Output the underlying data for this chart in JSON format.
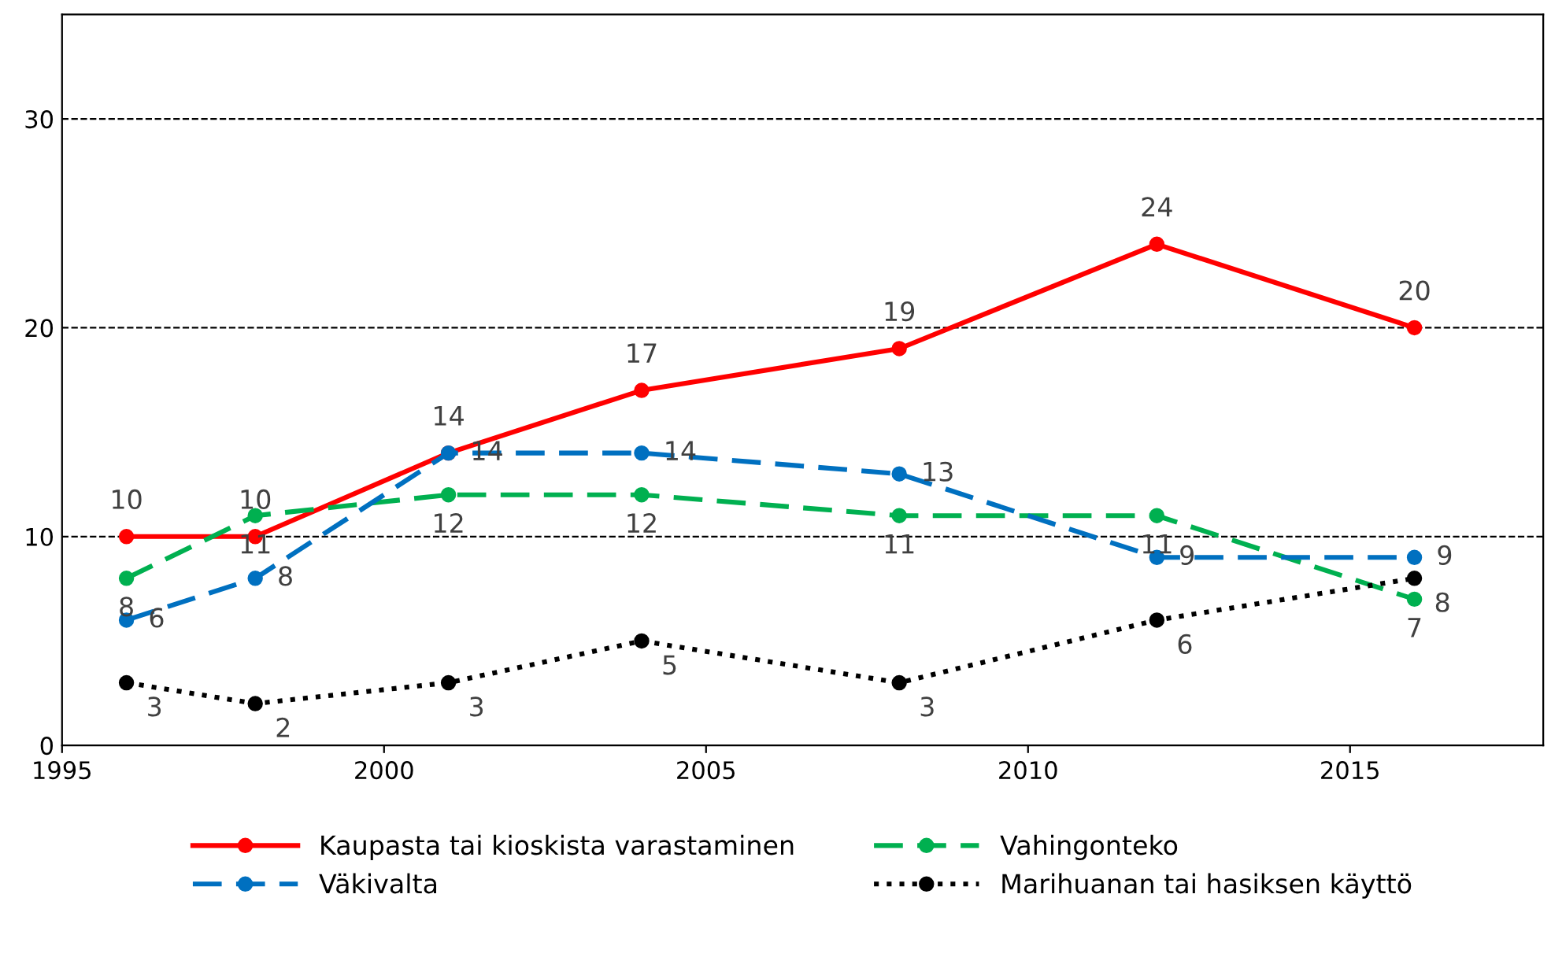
{
  "chart_data": {
    "type": "line",
    "x": [
      1996,
      1998,
      2001,
      2004,
      2008,
      2012,
      2016
    ],
    "series": [
      {
        "name": "Kaupasta tai kioskista varastaminen",
        "color": "#ff0000",
        "line_style": "solid",
        "values": [
          10,
          10,
          14,
          17,
          19,
          24,
          20
        ]
      },
      {
        "name": "Vahingonteko",
        "color": "#00b050",
        "line_style": "dashed",
        "values": [
          8,
          11,
          12,
          12,
          11,
          11,
          7
        ]
      },
      {
        "name": "Väkivalta",
        "color": "#0070c0",
        "line_style": "dashed",
        "values": [
          6,
          8,
          14,
          14,
          13,
          9,
          9
        ]
      },
      {
        "name": "Marihuanan tai hasiksen käyttö",
        "color": "#000000",
        "line_style": "dotted",
        "values": [
          3,
          2,
          3,
          5,
          3,
          6,
          8
        ]
      }
    ],
    "xlim": [
      1995,
      2018
    ],
    "xticks": [
      1995,
      2000,
      2005,
      2010,
      2015
    ],
    "ylim": [
      0,
      35
    ],
    "yticks": [
      0,
      10,
      20,
      30
    ],
    "grid": "y",
    "legend": "bottom",
    "marker": "circle",
    "data_labels": true
  }
}
